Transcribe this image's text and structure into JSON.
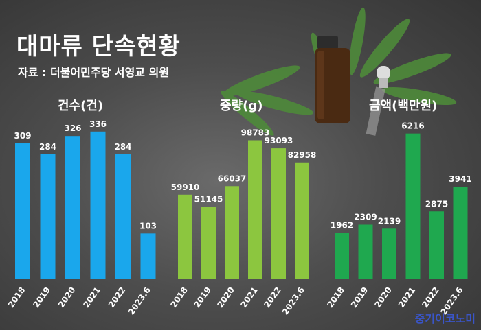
{
  "header": {
    "title": "대마류 단속현황",
    "subtitle": "자료 : 더불어민주당 서영교 의원"
  },
  "watermark": "중기이코노미",
  "chart_data": [
    {
      "type": "bar",
      "title": "건수(건)",
      "categories": [
        "2018",
        "2019",
        "2020",
        "2021",
        "2022",
        "2023.6"
      ],
      "values": [
        309,
        284,
        326,
        336,
        284,
        103
      ],
      "color": "#1aa7ec",
      "ylim": [
        0,
        400
      ]
    },
    {
      "type": "bar",
      "title": "중량(g)",
      "categories": [
        "2018",
        "2019",
        "2020",
        "2021",
        "2022",
        "2023.6"
      ],
      "values": [
        59910,
        51145,
        66037,
        98783,
        93093,
        82958
      ],
      "color": "#8cc63f",
      "ylim": [
        0,
        125000
      ]
    },
    {
      "type": "bar",
      "title": "금액(백만원)",
      "categories": [
        "2018",
        "2019",
        "2020",
        "2021",
        "2022",
        "2023.6"
      ],
      "values": [
        1962,
        2309,
        2139,
        6216,
        2875,
        3941
      ],
      "color": "#1fa84f",
      "ylim": [
        0,
        7500
      ]
    }
  ]
}
